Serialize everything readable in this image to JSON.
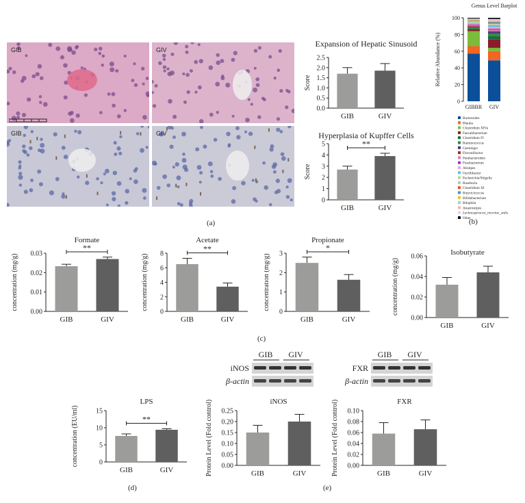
{
  "panel_labels": {
    "a": "(a)",
    "b": "(b)",
    "c": "(c)",
    "d": "(d)",
    "e": "(e)"
  },
  "histology": {
    "he_left_tag": "GIB",
    "he_right_tag": "GIV",
    "ihc_left_tag": "GIB",
    "ihc_right_tag": "GIV",
    "colors": {
      "he_bg": "#d9a9c6",
      "he_nuclei": "#7a4d8e",
      "ihc_bg": "#c9c9d6",
      "ihc_nuclei": "#5b6aa6",
      "ihc_stain": "#6b4d2a"
    }
  },
  "legend_b": {
    "items": [
      {
        "name": "Bacteroides",
        "color": "#0b4f9a"
      },
      {
        "name": "Blautia",
        "color": "#f26522"
      },
      {
        "name": "Clostridium XIVa",
        "color": "#7cbb3b"
      },
      {
        "name": "Faecalibacterium",
        "color": "#8a1c2b"
      },
      {
        "name": "Clostridium IV",
        "color": "#1b6b3a"
      },
      {
        "name": "Ruminococcus",
        "color": "#2e8b3a"
      },
      {
        "name": "Gemmiger",
        "color": "#3c3c8c"
      },
      {
        "name": "Flavonifractor",
        "color": "#b22222"
      },
      {
        "name": "Parabacteroides",
        "color": "#d67fb0"
      },
      {
        "name": "Fusobacterium",
        "color": "#9b30d9"
      },
      {
        "name": "Alistipes",
        "color": "#f4a6c8"
      },
      {
        "name": "Oscillibacter",
        "color": "#5ec4d6"
      },
      {
        "name": "Escherichia/Shigella",
        "color": "#b4d98e"
      },
      {
        "name": "Roseburia",
        "color": "#c0c0c0"
      },
      {
        "name": "Clostridium XI",
        "color": "#e05a1b"
      },
      {
        "name": "Butyricicoccus",
        "color": "#4a90c6"
      },
      {
        "name": "Bifidobacterium",
        "color": "#e7c81d"
      },
      {
        "name": "Bilophila",
        "color": "#9bd1ec"
      },
      {
        "name": "Anaerostipes",
        "color": "#f1b7a0"
      },
      {
        "name": "Lachnospiracea_incertae_sedis",
        "color": "#d7d7ef"
      },
      {
        "name": "Other",
        "color": "#111111"
      }
    ]
  },
  "chart_data": [
    {
      "id": "sinusoid",
      "type": "bar",
      "title": "Expansion of Hepatic Sinusoid",
      "ylabel": "Score",
      "categories": [
        "GIB",
        "GIV"
      ],
      "values": [
        1.7,
        1.85
      ],
      "errors": [
        0.3,
        0.35
      ],
      "ylim": [
        0,
        2.5
      ],
      "yticks": [
        "0.0",
        "0.5",
        "1.0",
        "1.5",
        "2.0",
        "2.5"
      ],
      "significance": ""
    },
    {
      "id": "kupffer",
      "type": "bar",
      "title": "Hyperplasia of Kupffer Cells",
      "ylabel": "Score",
      "categories": [
        "GIB",
        "GIV"
      ],
      "values": [
        2.7,
        3.9
      ],
      "errors": [
        0.3,
        0.25
      ],
      "ylim": [
        0,
        5
      ],
      "yticks": [
        "0",
        "1",
        "2",
        "3",
        "4",
        "5"
      ],
      "significance": "**"
    },
    {
      "id": "genus",
      "type": "bar",
      "stacked": true,
      "title": "Genus Level Barplot",
      "ylabel": "Relative Abundance (%)",
      "categories": [
        "GIBBR",
        "GIV"
      ],
      "ylim": [
        0,
        100
      ],
      "yticks": [
        "0",
        "20",
        "40",
        "60",
        "80",
        "100"
      ],
      "series": [
        {
          "name": "Bacteroides",
          "values": [
            57,
            49
          ]
        },
        {
          "name": "Blautia",
          "values": [
            9,
            11
          ]
        },
        {
          "name": "Clostridium XIVa",
          "values": [
            18,
            4
          ]
        },
        {
          "name": "Faecalibacterium",
          "values": [
            2,
            10
          ]
        },
        {
          "name": "Clostridium IV",
          "values": [
            1,
            4
          ]
        },
        {
          "name": "Ruminococcus",
          "values": [
            1,
            3
          ]
        },
        {
          "name": "Gemmiger",
          "values": [
            1,
            2
          ]
        },
        {
          "name": "Flavonifractor",
          "values": [
            1,
            1
          ]
        },
        {
          "name": "Parabacteroides",
          "values": [
            1,
            2
          ]
        },
        {
          "name": "Fusobacterium",
          "values": [
            1,
            1
          ]
        },
        {
          "name": "Alistipes",
          "values": [
            1,
            2
          ]
        },
        {
          "name": "Oscillibacter",
          "values": [
            1,
            2
          ]
        },
        {
          "name": "Escherichia/Shigella",
          "values": [
            1,
            1
          ]
        },
        {
          "name": "Roseburia",
          "values": [
            1,
            1
          ]
        },
        {
          "name": "Clostridium XI",
          "values": [
            0.5,
            1
          ]
        },
        {
          "name": "Butyricicoccus",
          "values": [
            0.5,
            1
          ]
        },
        {
          "name": "Bifidobacterium",
          "values": [
            0.5,
            0.5
          ]
        },
        {
          "name": "Bilophila",
          "values": [
            0.5,
            1
          ]
        },
        {
          "name": "Anaerostipes",
          "values": [
            0.5,
            1
          ]
        },
        {
          "name": "Lachnospiracea_incertae_sedis",
          "values": [
            0.5,
            1
          ]
        },
        {
          "name": "Other",
          "values": [
            1,
            1.5
          ]
        }
      ]
    },
    {
      "id": "formate",
      "type": "bar",
      "title": "Formate",
      "ylabel": "concentration (mg/g)",
      "categories": [
        "GIB",
        "GIV"
      ],
      "values": [
        0.0233,
        0.027
      ],
      "errors": [
        0.001,
        0.001
      ],
      "ylim": [
        0,
        0.03
      ],
      "yticks": [
        "0.00",
        "0.01",
        "0.02",
        "0.03"
      ],
      "significance": "**"
    },
    {
      "id": "acetate",
      "type": "bar",
      "title": "Acetate",
      "ylabel": "concentration (mg/g)",
      "categories": [
        "GIB",
        "GIV"
      ],
      "values": [
        6.5,
        3.4
      ],
      "errors": [
        0.8,
        0.5
      ],
      "ylim": [
        0,
        8
      ],
      "yticks": [
        "0",
        "2",
        "4",
        "6",
        "8"
      ],
      "significance": "**"
    },
    {
      "id": "propionate",
      "type": "bar",
      "title": "Propionate",
      "ylabel": "concentration (mg/g)",
      "categories": [
        "GIB",
        "GIV"
      ],
      "values": [
        2.5,
        1.63
      ],
      "errors": [
        0.3,
        0.27
      ],
      "ylim": [
        0,
        3
      ],
      "yticks": [
        "0",
        "1",
        "2",
        "3"
      ],
      "significance": "*"
    },
    {
      "id": "isobutyrate",
      "type": "bar",
      "title": "Isobutyrate",
      "ylabel": "concentration (mg/g)",
      "categories": [
        "GIB",
        "GIV"
      ],
      "values": [
        0.032,
        0.044
      ],
      "errors": [
        0.007,
        0.006
      ],
      "ylim": [
        0,
        0.06
      ],
      "yticks": [
        "0.00",
        "0.02",
        "0.04",
        "0.06"
      ],
      "significance": ""
    },
    {
      "id": "lps",
      "type": "bar",
      "title": "LPS",
      "ylabel": "concentration (EU/ml)",
      "categories": [
        "GIB",
        "GIV"
      ],
      "values": [
        7.6,
        9.4
      ],
      "errors": [
        0.6,
        0.3
      ],
      "ylim": [
        0,
        15
      ],
      "yticks": [
        "0",
        "5",
        "10",
        "15"
      ],
      "significance": "**"
    },
    {
      "id": "inos",
      "type": "bar",
      "title": "iNOS",
      "ylabel": "Protein Level (Fold control)",
      "categories": [
        "GIB",
        "GIV"
      ],
      "values": [
        0.15,
        0.2
      ],
      "errors": [
        0.033,
        0.033
      ],
      "ylim": [
        0,
        0.25
      ],
      "yticks": [
        "0.00",
        "0.05",
        "0.10",
        "0.15",
        "0.20",
        "0.25"
      ],
      "significance": ""
    },
    {
      "id": "fxr",
      "type": "bar",
      "title": "FXR",
      "ylabel": "Protein Level (Fold control)",
      "categories": [
        "GIB",
        "GIV"
      ],
      "values": [
        0.058,
        0.066
      ],
      "errors": [
        0.02,
        0.017
      ],
      "ylim": [
        0,
        0.1
      ],
      "yticks": [
        "0.00",
        "0.02",
        "0.04",
        "0.06",
        "0.08",
        "0.10"
      ],
      "significance": ""
    }
  ],
  "western": {
    "inos_label": "iNOS",
    "fxr_label": "FXR",
    "actin_label_left": "β-actin",
    "actin_label_right": "β-actin",
    "inos_groups": [
      "GIB",
      "GIV"
    ],
    "fxr_groups": [
      "GIB",
      "GIV"
    ]
  }
}
